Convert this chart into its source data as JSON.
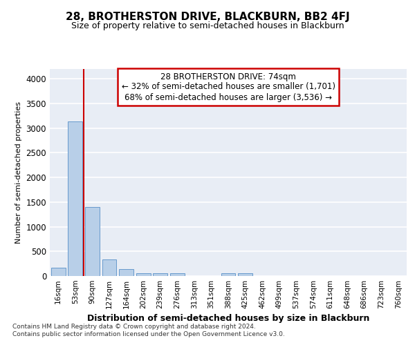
{
  "title": "28, BROTHERSTON DRIVE, BLACKBURN, BB2 4FJ",
  "subtitle": "Size of property relative to semi-detached houses in Blackburn",
  "xlabel": "Distribution of semi-detached houses by size in Blackburn",
  "ylabel": "Number of semi-detached properties",
  "categories": [
    "16sqm",
    "53sqm",
    "90sqm",
    "127sqm",
    "164sqm",
    "202sqm",
    "239sqm",
    "276sqm",
    "313sqm",
    "351sqm",
    "388sqm",
    "425sqm",
    "462sqm",
    "499sqm",
    "537sqm",
    "574sqm",
    "611sqm",
    "648sqm",
    "686sqm",
    "723sqm",
    "760sqm"
  ],
  "values": [
    175,
    3130,
    1400,
    330,
    140,
    60,
    50,
    50,
    0,
    0,
    50,
    50,
    0,
    0,
    0,
    0,
    0,
    0,
    0,
    0,
    0
  ],
  "bar_color": "#b8cfe8",
  "bar_edgecolor": "#6699cc",
  "property_line_x": 1.5,
  "annotation_text_line1": "28 BROTHERSTON DRIVE: 74sqm",
  "annotation_text_line2": "← 32% of semi-detached houses are smaller (1,701)",
  "annotation_text_line3": "68% of semi-detached houses are larger (3,536) →",
  "ylim": [
    0,
    4200
  ],
  "yticks": [
    0,
    500,
    1000,
    1500,
    2000,
    2500,
    3000,
    3500,
    4000
  ],
  "background_color": "#e8edf5",
  "grid_color": "#ffffff",
  "footer_line1": "Contains HM Land Registry data © Crown copyright and database right 2024.",
  "footer_line2": "Contains public sector information licensed under the Open Government Licence v3.0."
}
